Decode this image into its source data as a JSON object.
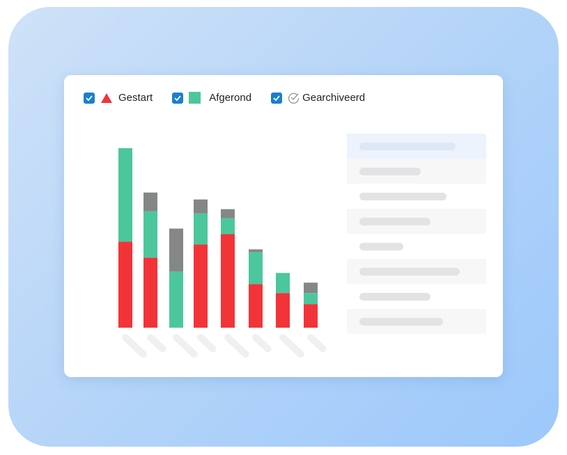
{
  "legend": [
    {
      "label": "Gestart",
      "icon": "triangle-icon",
      "color": "#f23438",
      "checked": true
    },
    {
      "label": "Afgerond",
      "icon": "square-icon",
      "color": "#4cc79c",
      "checked": true
    },
    {
      "label": "Gearchiveerd",
      "icon": "check-circle-icon",
      "color": "#858686",
      "checked": true
    }
  ],
  "chart_data": {
    "type": "bar",
    "stacked": true,
    "categories": [
      "",
      "",
      "",
      "",
      "",
      "",
      "",
      ""
    ],
    "series": [
      {
        "name": "Gestart",
        "color": "#f23438",
        "values": [
          124,
          101,
          0,
          120,
          135,
          63,
          50,
          34
        ]
      },
      {
        "name": "Afgerond",
        "color": "#4cc79c",
        "values": [
          135,
          67,
          81,
          45,
          23,
          46,
          29,
          16
        ]
      },
      {
        "name": "Gearchiveerd",
        "color": "#858686",
        "values": [
          0,
          27,
          62,
          20,
          13,
          4,
          0,
          15
        ]
      }
    ],
    "ylim": [
      0,
      260
    ],
    "grid": false,
    "legend_position": "top-left"
  },
  "colors": {
    "checkbox": "#1a7fd0",
    "placeholder": "#e3e3e5"
  }
}
